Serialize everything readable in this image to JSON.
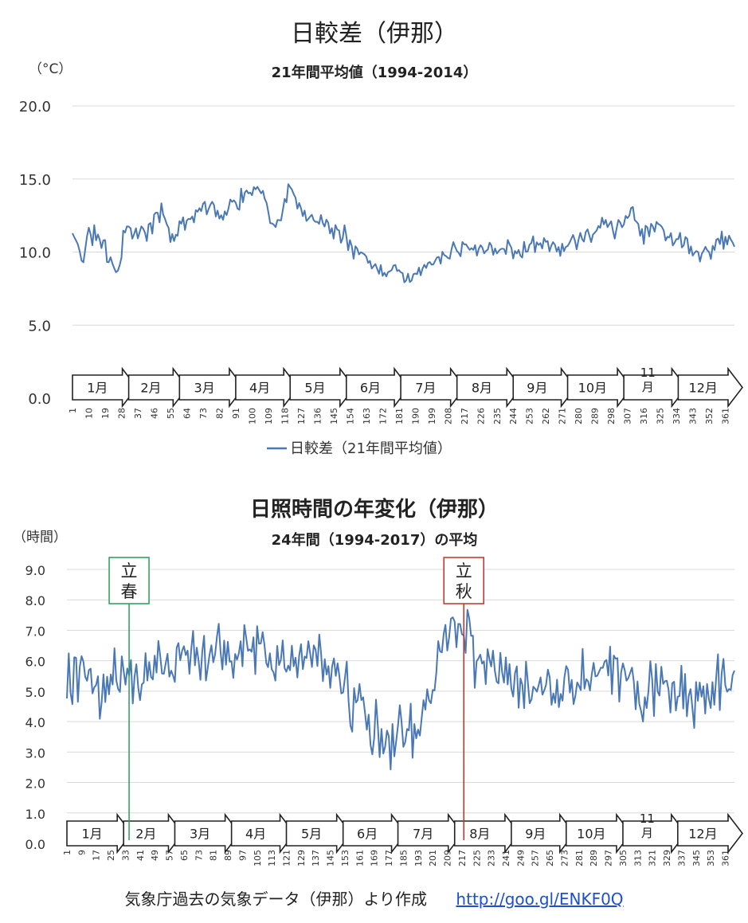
{
  "chart_data": [
    {
      "type": "line",
      "title": "日較差（伊那）",
      "subtitle": "21年間平均値（1994-2014）",
      "ylabel": "（°C）",
      "xlabel": "",
      "ylim": [
        0,
        20
      ],
      "yticks": [
        "0.0",
        "5.0",
        "10.0",
        "15.0",
        "20.0"
      ],
      "xlim": [
        1,
        366
      ],
      "xticks": [
        1,
        10,
        19,
        28,
        37,
        46,
        55,
        64,
        73,
        82,
        91,
        100,
        109,
        118,
        127,
        136,
        145,
        154,
        163,
        172,
        181,
        190,
        199,
        208,
        217,
        226,
        235,
        244,
        253,
        262,
        271,
        280,
        289,
        298,
        307,
        316,
        325,
        334,
        343,
        352,
        361
      ],
      "grid": true,
      "legend": "bottom",
      "months": [
        "1月",
        "2月",
        "3月",
        "4月",
        "5月",
        "6月",
        "7月",
        "8月",
        "9月",
        "10月",
        "11\n月",
        "12月"
      ],
      "series": [
        {
          "name": "日較差（21年間平均値）",
          "color": "#4a78b5",
          "anchors": [
            [
              1,
              10.9
            ],
            [
              4,
              11.0
            ],
            [
              6,
              9.0
            ],
            [
              10,
              11.5
            ],
            [
              14,
              11.0
            ],
            [
              18,
              10.2
            ],
            [
              22,
              9.5
            ],
            [
              26,
              8.6
            ],
            [
              30,
              11.6
            ],
            [
              35,
              11.5
            ],
            [
              40,
              11.2
            ],
            [
              46,
              12.0
            ],
            [
              50,
              12.8
            ],
            [
              55,
              11.0
            ],
            [
              60,
              11.5
            ],
            [
              65,
              12.0
            ],
            [
              70,
              12.8
            ],
            [
              75,
              13.1
            ],
            [
              80,
              12.9
            ],
            [
              85,
              12.5
            ],
            [
              90,
              13.5
            ],
            [
              95,
              14.0
            ],
            [
              99,
              14.2
            ],
            [
              103,
              14.5
            ],
            [
              108,
              13.5
            ],
            [
              112,
              11.6
            ],
            [
              116,
              12.4
            ],
            [
              120,
              14.5
            ],
            [
              125,
              13.2
            ],
            [
              130,
              12.6
            ],
            [
              135,
              12.3
            ],
            [
              140,
              11.8
            ],
            [
              145,
              11.5
            ],
            [
              150,
              11.2
            ],
            [
              155,
              10.4
            ],
            [
              160,
              10.0
            ],
            [
              165,
              9.4
            ],
            [
              170,
              8.7
            ],
            [
              175,
              8.5
            ],
            [
              180,
              8.7
            ],
            [
              185,
              8.3
            ],
            [
              190,
              8.7
            ],
            [
              195,
              8.9
            ],
            [
              200,
              9.3
            ],
            [
              205,
              9.6
            ],
            [
              210,
              10.0
            ],
            [
              215,
              10.3
            ],
            [
              220,
              10.6
            ],
            [
              225,
              10.4
            ],
            [
              230,
              10.1
            ],
            [
              235,
              10.0
            ],
            [
              240,
              10.1
            ],
            [
              245,
              10.3
            ],
            [
              250,
              10.0
            ],
            [
              255,
              10.4
            ],
            [
              260,
              10.3
            ],
            [
              265,
              10.4
            ],
            [
              270,
              10.1
            ],
            [
              275,
              10.6
            ],
            [
              280,
              10.9
            ],
            [
              285,
              11.1
            ],
            [
              290,
              11.5
            ],
            [
              295,
              12.3
            ],
            [
              300,
              11.6
            ],
            [
              305,
              12.3
            ],
            [
              310,
              12.5
            ],
            [
              315,
              11.3
            ],
            [
              320,
              11.5
            ],
            [
              325,
              11.7
            ],
            [
              330,
              10.8
            ],
            [
              335,
              11.0
            ],
            [
              340,
              10.5
            ],
            [
              345,
              9.8
            ],
            [
              350,
              10.1
            ],
            [
              355,
              10.4
            ],
            [
              360,
              10.9
            ],
            [
              365,
              10.6
            ]
          ]
        }
      ]
    },
    {
      "type": "line",
      "title": "日照時間の年変化（伊那）",
      "subtitle": "24年間（1994-2017）の平均",
      "ylabel": "（時間）",
      "xlabel": "",
      "ylim": [
        0,
        9
      ],
      "yticks": [
        "0.0",
        "1.0",
        "2.0",
        "3.0",
        "4.0",
        "5.0",
        "6.0",
        "7.0",
        "8.0",
        "9.0"
      ],
      "xlim": [
        1,
        366
      ],
      "xticks": [
        1,
        9,
        17,
        25,
        33,
        41,
        49,
        57,
        65,
        73,
        81,
        89,
        97,
        105,
        113,
        121,
        129,
        137,
        145,
        153,
        161,
        169,
        177,
        185,
        193,
        201,
        209,
        217,
        225,
        233,
        241,
        249,
        257,
        265,
        273,
        281,
        289,
        297,
        305,
        313,
        321,
        329,
        337,
        345,
        353,
        361
      ],
      "grid": true,
      "months": [
        "1月",
        "2月",
        "3月",
        "4月",
        "5月",
        "6月",
        "7月",
        "8月",
        "9月",
        "10月",
        "11\n月",
        "12月"
      ],
      "annotations": [
        {
          "label": "立\n春",
          "day": 35,
          "color": "#2a9a5a"
        },
        {
          "label": "立\n秋",
          "day": 218,
          "color": "#c0302a"
        }
      ],
      "series": [
        {
          "color": "#4a78b5",
          "anchors": [
            [
              1,
              5.2
            ],
            [
              6,
              5.6
            ],
            [
              10,
              5.6
            ],
            [
              15,
              5.0
            ],
            [
              20,
              4.8
            ],
            [
              24,
              5.0
            ],
            [
              28,
              5.6
            ],
            [
              33,
              5.8
            ],
            [
              38,
              5.5
            ],
            [
              42,
              5.7
            ],
            [
              48,
              5.9
            ],
            [
              53,
              5.8
            ],
            [
              58,
              5.9
            ],
            [
              63,
              5.9
            ],
            [
              68,
              6.0
            ],
            [
              74,
              6.1
            ],
            [
              80,
              6.2
            ],
            [
              86,
              6.2
            ],
            [
              92,
              6.3
            ],
            [
              98,
              6.3
            ],
            [
              104,
              6.2
            ],
            [
              110,
              6.0
            ],
            [
              116,
              6.0
            ],
            [
              122,
              6.1
            ],
            [
              128,
              6.1
            ],
            [
              134,
              6.0
            ],
            [
              140,
              5.9
            ],
            [
              146,
              5.8
            ],
            [
              152,
              5.5
            ],
            [
              157,
              4.8
            ],
            [
              162,
              4.4
            ],
            [
              167,
              3.9
            ],
            [
              172,
              3.5
            ],
            [
              177,
              3.2
            ],
            [
              182,
              3.5
            ],
            [
              187,
              3.7
            ],
            [
              192,
              4.0
            ],
            [
              197,
              4.6
            ],
            [
              202,
              5.4
            ],
            [
              207,
              6.2
            ],
            [
              212,
              6.9
            ],
            [
              216,
              7.2
            ],
            [
              220,
              6.6
            ],
            [
              225,
              6.0
            ],
            [
              230,
              5.8
            ],
            [
              235,
              5.7
            ],
            [
              240,
              5.6
            ],
            [
              245,
              5.4
            ],
            [
              250,
              5.1
            ],
            [
              255,
              5.2
            ],
            [
              260,
              5.0
            ],
            [
              265,
              5.1
            ],
            [
              270,
              5.2
            ],
            [
              275,
              5.2
            ],
            [
              280,
              5.5
            ],
            [
              285,
              5.4
            ],
            [
              290,
              5.5
            ],
            [
              295,
              5.6
            ],
            [
              300,
              5.6
            ],
            [
              305,
              5.4
            ],
            [
              310,
              5.1
            ],
            [
              315,
              5.1
            ],
            [
              320,
              5.0
            ],
            [
              325,
              5.1
            ],
            [
              330,
              5.0
            ],
            [
              335,
              4.9
            ],
            [
              340,
              4.9
            ],
            [
              345,
              4.8
            ],
            [
              350,
              4.9
            ],
            [
              355,
              5.0
            ],
            [
              360,
              5.5
            ],
            [
              366,
              5.2
            ]
          ]
        }
      ]
    }
  ],
  "footer": {
    "source": "気象庁過去の気象データ（伊那）より作成",
    "link": "http://goo.gl/ENKF0Q"
  }
}
